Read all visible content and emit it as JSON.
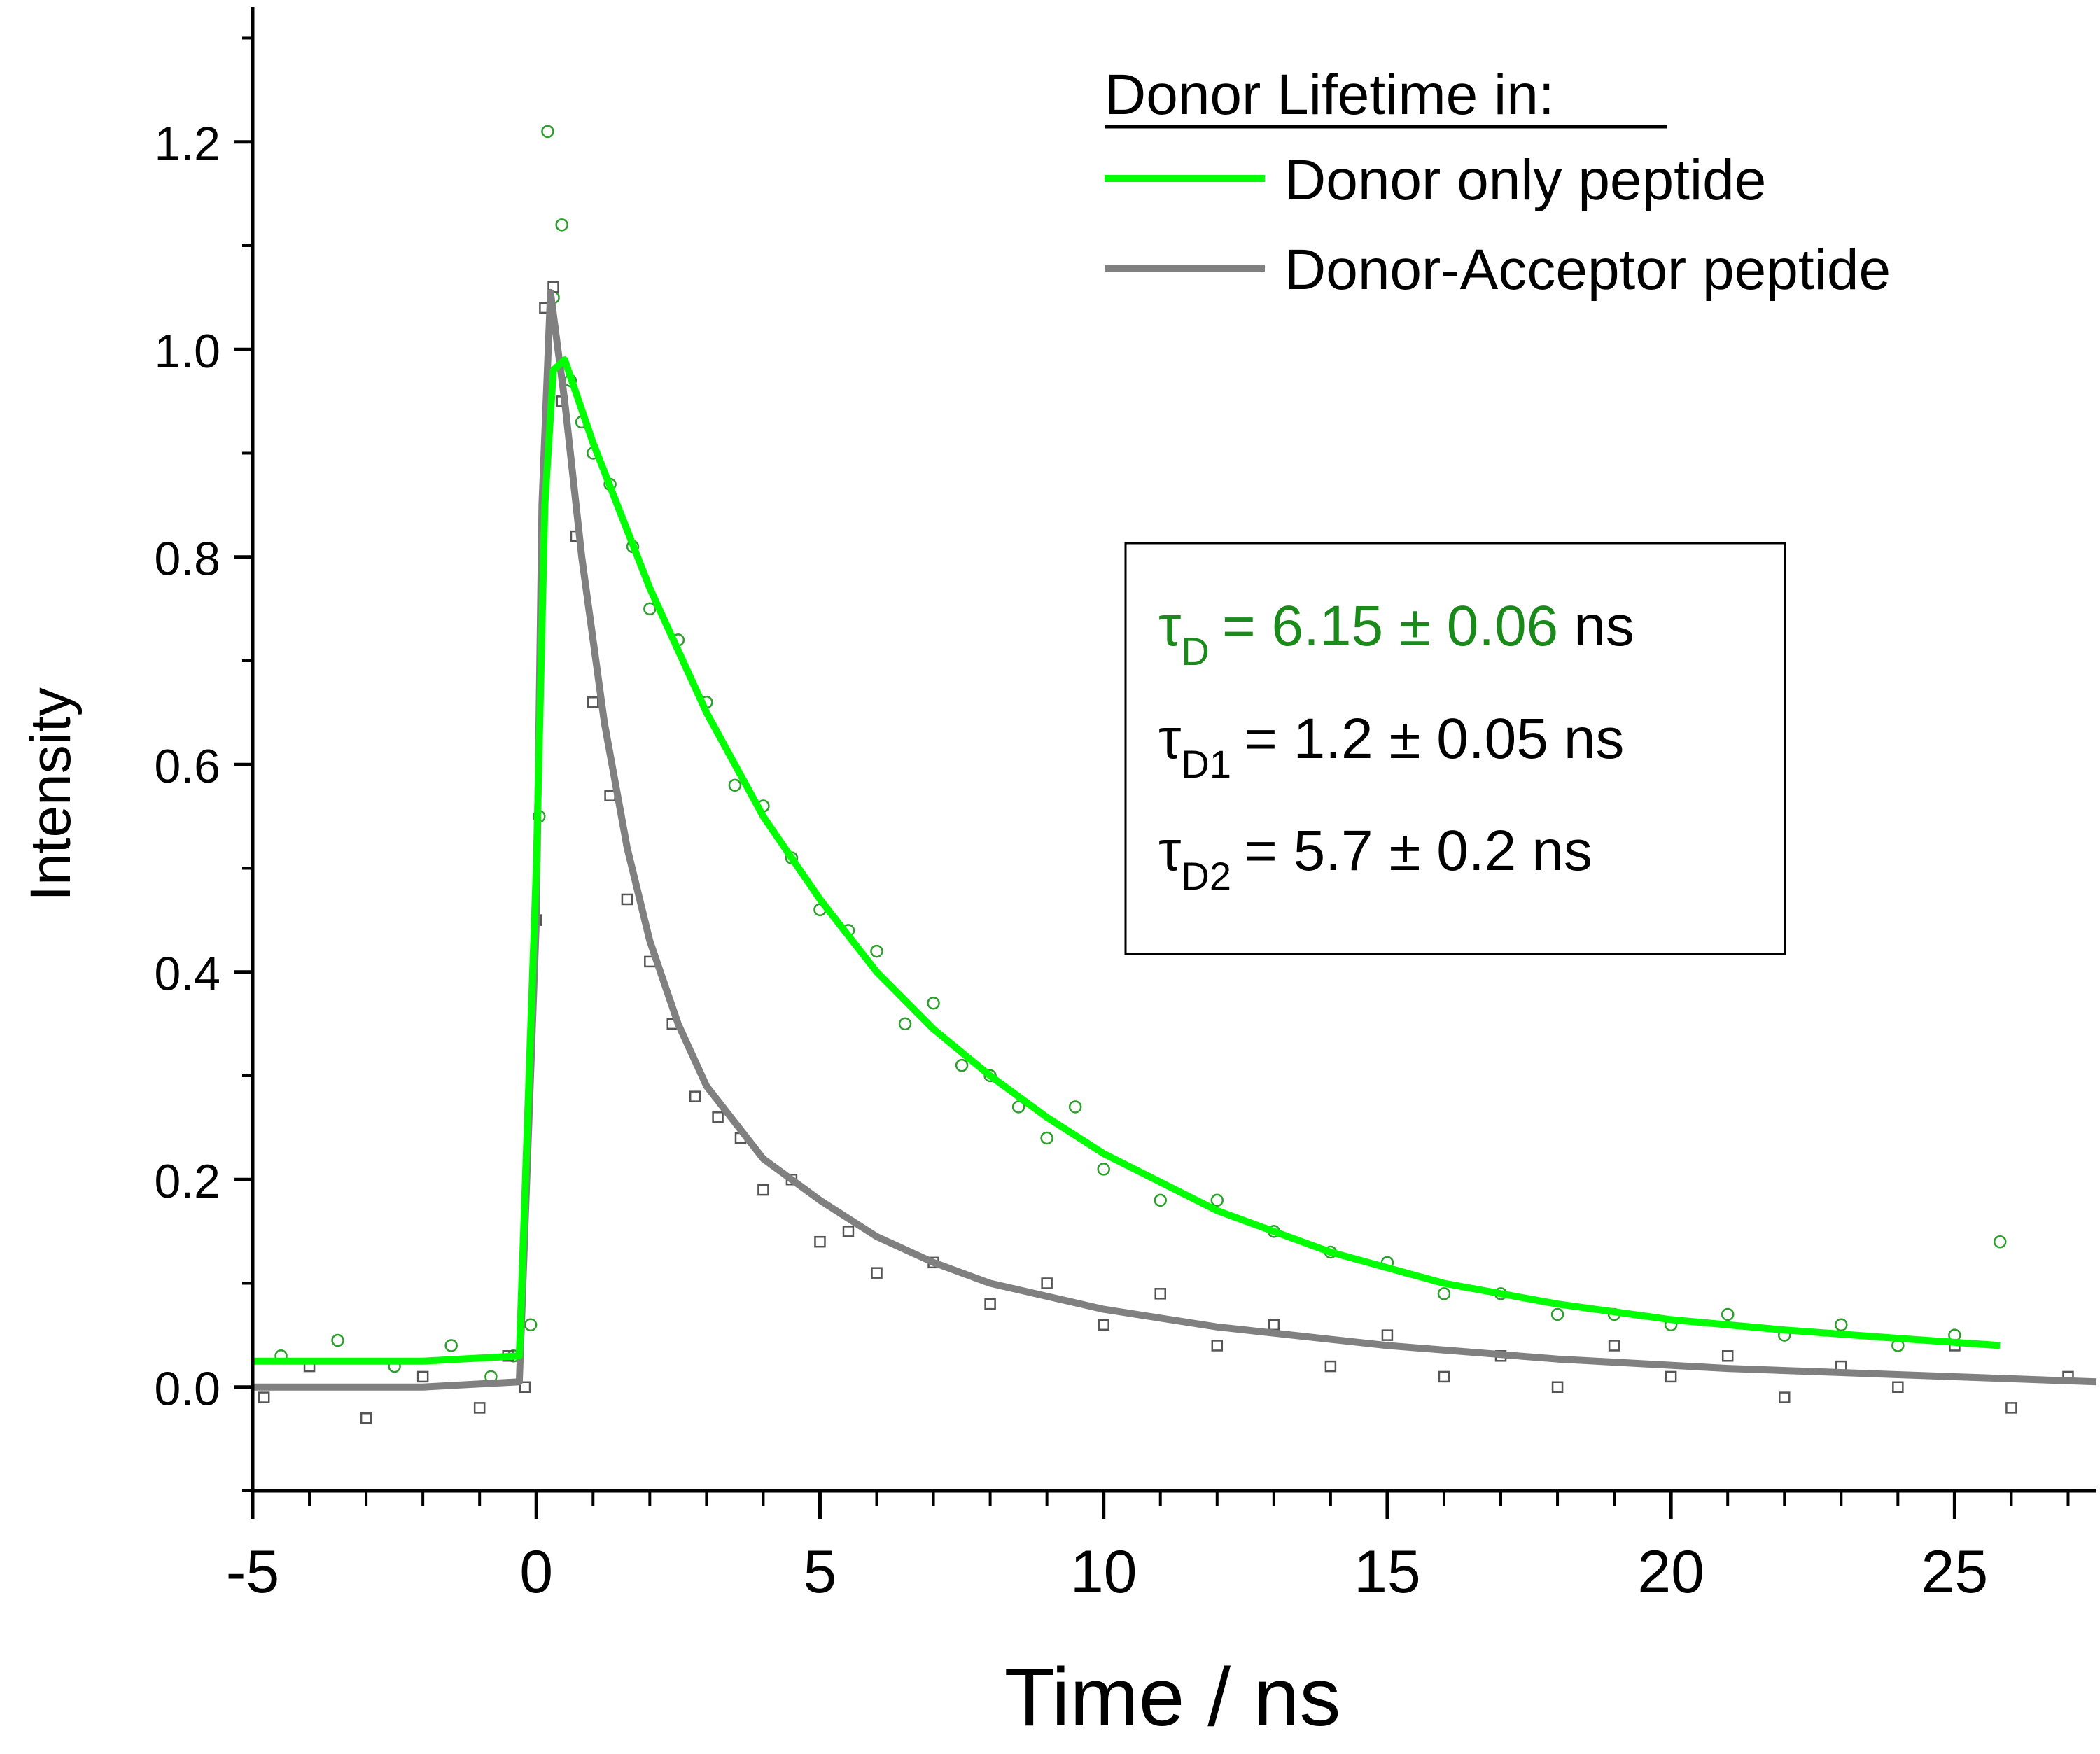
{
  "chart_data": {
    "type": "line",
    "title": "",
    "xlabel": "Time / ns",
    "ylabel": "Intensity",
    "xlim": [
      -5,
      27.5
    ],
    "ylim": [
      -0.1,
      1.33
    ],
    "xticks": [
      -5,
      0,
      5,
      10,
      15,
      20,
      25
    ],
    "xtick_labels": [
      "-5",
      "0",
      "5",
      "10",
      "15",
      "20",
      "25"
    ],
    "yticks": [
      0.0,
      0.2,
      0.4,
      0.6,
      0.8,
      1.0,
      1.2
    ],
    "ytick_labels": [
      "0.0",
      "0.2",
      "0.4",
      "0.6",
      "0.8",
      "1.0",
      "1.2"
    ],
    "legend": {
      "title": "Donor Lifetime in:",
      "placement": "top-right",
      "entries": [
        "Donor only peptide",
        "Donor-Acceptor peptide"
      ]
    },
    "series": [
      {
        "name": "Donor only peptide",
        "kind": "fit-line",
        "color": "#00ff00",
        "x": [
          -5,
          -2,
          -0.3,
          0.0,
          0.15,
          0.3,
          0.5,
          1,
          2,
          3,
          4,
          5,
          6,
          7,
          8,
          9,
          10,
          12,
          14,
          16,
          18,
          20,
          22,
          24,
          25.8
        ],
        "y": [
          0.025,
          0.025,
          0.03,
          0.5,
          0.85,
          0.98,
          0.99,
          0.91,
          0.77,
          0.65,
          0.55,
          0.47,
          0.4,
          0.345,
          0.3,
          0.26,
          0.225,
          0.17,
          0.13,
          0.1,
          0.08,
          0.065,
          0.055,
          0.047,
          0.04
        ]
      },
      {
        "name": "Donor-Acceptor peptide",
        "kind": "fit-line",
        "color": "#808080",
        "x": [
          -5,
          -2,
          -0.3,
          0.0,
          0.1,
          0.25,
          0.5,
          0.8,
          1.2,
          1.6,
          2,
          2.5,
          3,
          4,
          5,
          6,
          7,
          8,
          10,
          12,
          15,
          18,
          21,
          24,
          27.5
        ],
        "y": [
          0.0,
          0.0,
          0.005,
          0.45,
          0.85,
          1.055,
          0.95,
          0.8,
          0.64,
          0.52,
          0.43,
          0.35,
          0.29,
          0.22,
          0.18,
          0.145,
          0.12,
          0.1,
          0.075,
          0.058,
          0.04,
          0.027,
          0.018,
          0.012,
          0.005
        ]
      },
      {
        "name": "Donor only peptide",
        "kind": "measured-points",
        "marker": "open-circle",
        "color": "#2aa02a",
        "x": [
          -4.5,
          -3.5,
          -2.5,
          -1.5,
          -0.8,
          -0.4,
          -0.1,
          0.05,
          0.2,
          0.3,
          0.45,
          0.6,
          0.8,
          1.0,
          1.3,
          1.7,
          2.0,
          2.5,
          3.0,
          3.5,
          4.0,
          4.5,
          5.0,
          5.5,
          6.0,
          6.5,
          7.0,
          7.5,
          8.0,
          8.5,
          9.0,
          9.5,
          10.0,
          11.0,
          12.0,
          13.0,
          14.0,
          15.0,
          16.0,
          17.0,
          18.0,
          19.0,
          20.0,
          21.0,
          22.0,
          23.0,
          24.0,
          25.0,
          25.8
        ],
        "y": [
          0.03,
          0.045,
          0.02,
          0.04,
          0.01,
          0.03,
          0.06,
          0.55,
          1.21,
          1.05,
          1.12,
          0.97,
          0.93,
          0.9,
          0.87,
          0.81,
          0.75,
          0.72,
          0.66,
          0.58,
          0.56,
          0.51,
          0.46,
          0.44,
          0.42,
          0.35,
          0.37,
          0.31,
          0.3,
          0.27,
          0.24,
          0.27,
          0.21,
          0.18,
          0.18,
          0.15,
          0.13,
          0.12,
          0.09,
          0.09,
          0.07,
          0.07,
          0.06,
          0.07,
          0.05,
          0.06,
          0.04,
          0.05,
          0.14
        ]
      },
      {
        "name": "Donor-Acceptor peptide",
        "kind": "measured-points",
        "marker": "open-square",
        "color": "#555555",
        "x": [
          -4.8,
          -4.0,
          -3.0,
          -2.0,
          -1.0,
          -0.5,
          -0.2,
          0.0,
          0.15,
          0.3,
          0.45,
          0.7,
          1.0,
          1.3,
          1.6,
          2.0,
          2.4,
          2.8,
          3.2,
          3.6,
          4.0,
          4.5,
          5.0,
          5.5,
          6.0,
          7.0,
          8.0,
          9.0,
          10.0,
          11.0,
          12.0,
          13.0,
          14.0,
          15.0,
          16.0,
          17.0,
          18.0,
          19.0,
          20.0,
          21.0,
          22.0,
          23.0,
          24.0,
          25.0,
          26.0,
          27.0
        ],
        "y": [
          -0.01,
          0.02,
          -0.03,
          0.01,
          -0.02,
          0.03,
          0.0,
          0.45,
          1.04,
          1.06,
          0.95,
          0.82,
          0.66,
          0.57,
          0.47,
          0.41,
          0.35,
          0.28,
          0.26,
          0.24,
          0.19,
          0.2,
          0.14,
          0.15,
          0.11,
          0.12,
          0.08,
          0.1,
          0.06,
          0.09,
          0.04,
          0.06,
          0.02,
          0.05,
          0.01,
          0.03,
          0.0,
          0.04,
          0.01,
          0.03,
          -0.01,
          0.02,
          0.0,
          0.04,
          -0.02,
          0.01
        ]
      }
    ],
    "annotation_box": {
      "lines": [
        {
          "symbol": "τ",
          "subscript": "D",
          "value": "= 6.15 ± 0.06",
          "unit": "ns",
          "color": "#1a8a1a"
        },
        {
          "symbol": "τ",
          "subscript": "D1",
          "value": "= 1.2 ± 0.05",
          "unit": "ns",
          "color": "#000000"
        },
        {
          "symbol": "τ",
          "subscript": "D2",
          "value": "= 5.7 ± 0.2",
          "unit": "ns",
          "color": "#000000"
        }
      ]
    }
  }
}
